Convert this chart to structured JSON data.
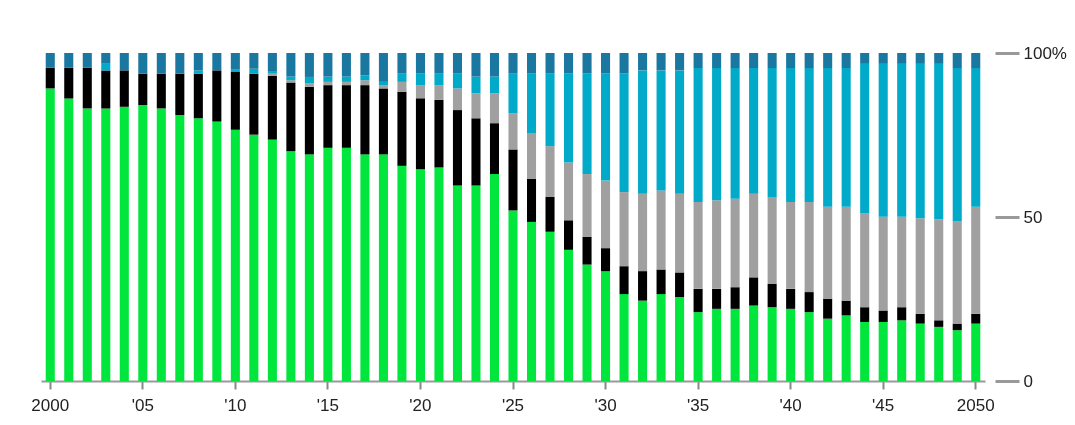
{
  "chart_data": {
    "type": "bar",
    "stacked": true,
    "categories": [
      "2000",
      null,
      null,
      null,
      null,
      "'05",
      null,
      null,
      null,
      null,
      "'10",
      null,
      null,
      null,
      null,
      "'15",
      null,
      null,
      null,
      null,
      "'20",
      null,
      null,
      null,
      null,
      "'25",
      null,
      null,
      null,
      null,
      "'30",
      null,
      null,
      null,
      null,
      "'35",
      null,
      null,
      null,
      null,
      "'40",
      null,
      null,
      null,
      null,
      "'45",
      null,
      null,
      null,
      null,
      "2050"
    ],
    "series": [
      {
        "color": "#00e63c",
        "values": [
          89.2,
          86.1,
          83.1,
          83.1,
          83.6,
          84.1,
          83.1,
          81.1,
          80.1,
          79.1,
          76.6,
          75.1,
          73.6,
          70.1,
          69.1,
          71.1,
          71.1,
          69.1,
          69.1,
          65.6,
          64.6,
          65.1,
          59.6,
          59.6,
          63.1,
          52.0,
          48.5,
          45.5,
          40.0,
          35.5,
          33.5,
          26.5,
          24.5,
          26.5,
          25.6,
          21.0,
          22.0,
          22.0,
          23.0,
          22.5,
          22.0,
          21.0,
          19.0,
          20.0,
          18.0,
          18.0,
          18.5,
          17.5,
          16.5,
          15.5,
          17.5
        ]
      },
      {
        "color": "#000000",
        "values": [
          6.3,
          9.4,
          12.4,
          11.6,
          11.1,
          9.6,
          10.6,
          12.6,
          13.6,
          15.6,
          17.6,
          18.6,
          19.4,
          20.9,
          20.6,
          19.1,
          19.1,
          21.1,
          20.1,
          22.6,
          21.6,
          20.6,
          23.0,
          20.5,
          15.5,
          18.6,
          13.1,
          10.6,
          9.0,
          8.5,
          7.0,
          8.5,
          9.0,
          7.5,
          7.5,
          7.1,
          6.1,
          6.6,
          8.6,
          7.1,
          6.1,
          6.1,
          6.1,
          4.5,
          4.5,
          3.5,
          4.0,
          3.0,
          2.0,
          2.0,
          3.0
        ]
      },
      {
        "color": "#a0a0a0",
        "values": [
          0,
          0,
          0,
          0,
          0,
          0,
          0,
          0,
          0,
          0,
          0,
          0,
          0.7,
          0.7,
          1.0,
          1.0,
          1.0,
          1.5,
          1.0,
          3.0,
          4.0,
          4.5,
          6.6,
          7.6,
          9.1,
          11.0,
          14.0,
          15.5,
          17.6,
          19.1,
          20.6,
          22.6,
          23.6,
          24.1,
          24.0,
          26.5,
          27.0,
          27.0,
          25.5,
          26.5,
          26.5,
          27.5,
          28.0,
          28.6,
          28.6,
          28.6,
          27.6,
          29.1,
          30.8,
          31.1,
          32.6
        ]
      },
      {
        "color": "#00aac8",
        "values": [
          0,
          0,
          0,
          2.0,
          0,
          0,
          0,
          0,
          1.0,
          0,
          0.7,
          1.5,
          0.8,
          1.1,
          2.0,
          1.6,
          1.6,
          1.5,
          1.0,
          2.5,
          3.5,
          3.5,
          4.5,
          5.1,
          5.1,
          12.1,
          18.1,
          22.1,
          27.1,
          30.6,
          32.6,
          36.1,
          37.6,
          36.6,
          37.6,
          40.8,
          40.3,
          39.8,
          38.3,
          39.3,
          40.8,
          40.8,
          42.3,
          42.3,
          45.6,
          46.6,
          46.6,
          47.1,
          47.4,
          46.8,
          42.3
        ]
      },
      {
        "color": "#1a78a0",
        "values": [
          4.5,
          4.5,
          4.5,
          3.3,
          5.3,
          6.3,
          6.3,
          6.3,
          5.3,
          5.3,
          5.1,
          4.8,
          5.5,
          7.2,
          7.3,
          7.2,
          7.2,
          6.8,
          8.8,
          6.3,
          6.3,
          6.3,
          6.3,
          7.2,
          7.2,
          6.3,
          6.3,
          6.3,
          6.3,
          6.3,
          6.3,
          6.3,
          5.3,
          5.3,
          5.3,
          4.6,
          4.6,
          4.6,
          4.6,
          4.6,
          4.6,
          4.6,
          4.6,
          4.6,
          3.3,
          3.3,
          3.3,
          3.3,
          3.3,
          4.6,
          4.6
        ]
      }
    ],
    "ylim": [
      0,
      100
    ],
    "yticks": [
      0,
      50,
      {
        "value": 100,
        "label": "100%"
      }
    ],
    "grid": false
  }
}
